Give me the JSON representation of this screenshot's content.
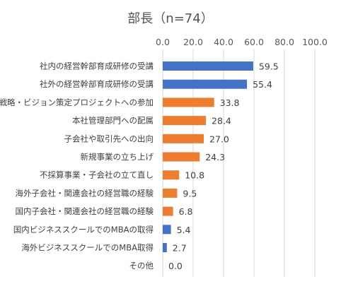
{
  "chart_data": {
    "type": "bar",
    "orientation": "horizontal",
    "title": "部長（n=74）",
    "xlim": [
      0,
      100
    ],
    "x_ticks": [
      "0.0",
      "20.0",
      "40.0",
      "60.0",
      "80.0",
      "100.0"
    ],
    "x_tick_values": [
      0,
      20,
      40,
      60,
      80,
      100
    ],
    "gridlines": "vertical",
    "axis_position": "top",
    "colors": {
      "blue": "#4472C4",
      "orange": "#ED7D31",
      "grid": "#D9D9D9",
      "text": "#404040"
    },
    "categories": [
      "社内の経営幹部育成研修の受講",
      "社外の経営幹部育成研修の受講",
      "戦略・ビジョン策定プロジェクトへの参加",
      "本社管理部門への配属",
      "子会社や取引先への出向",
      "新規事業の立ち上げ",
      "不採算事業・子会社の立て直し",
      "海外子会社・関連会社の経営職の経験",
      "国内子会社・関連会社の経営職の経験",
      "国内ビジネススクールでのMBAの取得",
      "海外ビジネススクールでのMBA取得",
      "その他"
    ],
    "values": [
      59.5,
      55.4,
      33.8,
      28.4,
      27.0,
      24.3,
      10.8,
      9.5,
      6.8,
      5.4,
      2.7,
      0.0
    ],
    "value_labels": [
      "59.5",
      "55.4",
      "33.8",
      "28.4",
      "27.0",
      "24.3",
      "10.8",
      "9.5",
      "6.8",
      "5.4",
      "2.7",
      "0.0"
    ],
    "bar_colors": [
      "blue",
      "blue",
      "orange",
      "orange",
      "orange",
      "orange",
      "orange",
      "orange",
      "orange",
      "blue",
      "blue",
      "blue"
    ]
  }
}
